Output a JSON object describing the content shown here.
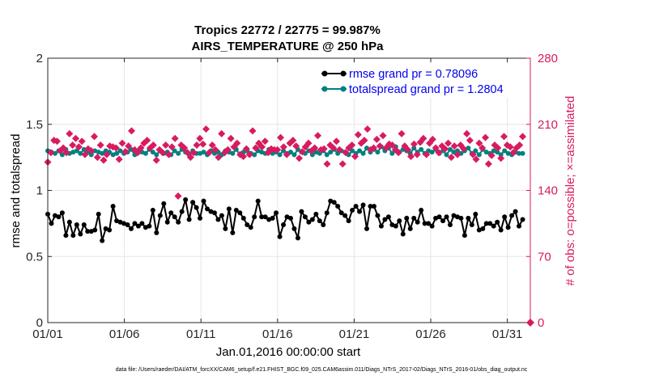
{
  "chart_data": {
    "type": "line",
    "title_line1": "Tropics 22772 / 22775 = 99.987%",
    "title_line2": "AIRS_TEMPERATURE @ 250 hPa",
    "xlabel": "Jan.01,2016 00:00:00 start",
    "ylabel_left": "rmse and totalspread",
    "ylabel_right": "# of obs: o=possible; ×=assimilated",
    "footer": "data file: /Users/raeder/DAI/ATM_forcXX/CAM6_setup/f.e21.FHIST_BGC.f09_025.CAM6assim.011/Diags_NTrS_2017-02/Diags_NTrS_2016-01/obs_diag_output.nc",
    "xlim": [
      0,
      31.5
    ],
    "ylim_left": [
      0,
      2
    ],
    "ylim_right": [
      0,
      280
    ],
    "x_ticks": [
      0,
      5,
      10,
      15,
      20,
      25,
      30
    ],
    "x_tick_labels": [
      "01/01",
      "01/06",
      "01/11",
      "01/16",
      "01/21",
      "01/26",
      "01/31"
    ],
    "y_ticks_left": [
      0,
      0.5,
      1,
      1.5,
      2
    ],
    "y_tick_labels_left": [
      "0",
      "0.5",
      "1",
      "1.5",
      "2"
    ],
    "y_ticks_right": [
      0,
      70,
      140,
      210,
      280
    ],
    "y_tick_labels_right": [
      "0",
      "70",
      "140",
      "210",
      "280"
    ],
    "grid": true,
    "legend_position": "top-right",
    "colors": {
      "rmse": "#000000",
      "spread": "#008080",
      "obs": "#d81b60",
      "axis": "#262626",
      "grid": "#e6e6e6"
    },
    "series": [
      {
        "name": "rmse grand pr = 0.78096",
        "axis": "left",
        "values": [
          0.82,
          0.75,
          0.81,
          0.8,
          0.83,
          0.66,
          0.76,
          0.66,
          0.74,
          0.67,
          0.74,
          0.69,
          0.69,
          0.7,
          0.82,
          0.62,
          0.71,
          0.7,
          0.88,
          0.77,
          0.76,
          0.75,
          0.74,
          0.71,
          0.75,
          0.73,
          0.75,
          0.72,
          0.73,
          0.85,
          0.68,
          0.81,
          0.9,
          0.76,
          0.83,
          0.8,
          0.76,
          0.84,
          0.93,
          0.78,
          0.91,
          0.87,
          0.79,
          0.92,
          0.86,
          0.84,
          0.83,
          0.78,
          0.81,
          0.71,
          0.86,
          0.68,
          0.85,
          0.83,
          0.79,
          0.74,
          0.72,
          0.8,
          0.92,
          0.8,
          0.8,
          0.78,
          0.79,
          0.83,
          0.65,
          0.74,
          0.8,
          0.79,
          0.71,
          0.64,
          0.84,
          0.8,
          0.76,
          0.78,
          0.82,
          0.77,
          0.74,
          0.83,
          0.92,
          0.91,
          0.88,
          0.83,
          0.81,
          0.77,
          0.85,
          0.88,
          0.84,
          0.89,
          0.71,
          0.88,
          0.88,
          0.81,
          0.73,
          0.78,
          0.8,
          0.74,
          0.73,
          0.77,
          0.67,
          0.79,
          0.71,
          0.79,
          0.76,
          0.85,
          0.75,
          0.75,
          0.73,
          0.79,
          0.8,
          0.77,
          0.8,
          0.74,
          0.81,
          0.8,
          0.79,
          0.66,
          0.79,
          0.74,
          0.82,
          0.7,
          0.71,
          0.75,
          0.75,
          0.73,
          0.76,
          0.7,
          0.8,
          0.72,
          0.81,
          0.84,
          0.73,
          0.78
        ]
      },
      {
        "name": "totalspread grand pr = 1.2804",
        "axis": "left",
        "values": [
          1.3,
          1.29,
          1.28,
          1.3,
          1.27,
          1.31,
          1.28,
          1.29,
          1.3,
          1.28,
          1.31,
          1.29,
          1.27,
          1.3,
          1.29,
          1.28,
          1.3,
          1.29,
          1.27,
          1.28,
          1.3,
          1.28,
          1.29,
          1.31,
          1.27,
          1.3,
          1.29,
          1.28,
          1.31,
          1.29,
          1.27,
          1.3,
          1.28,
          1.29,
          1.27,
          1.3,
          1.28,
          1.31,
          1.29,
          1.27,
          1.3,
          1.28,
          1.28,
          1.29,
          1.27,
          1.3,
          1.28,
          1.29,
          1.27,
          1.3,
          1.29,
          1.28,
          1.31,
          1.27,
          1.29,
          1.3,
          1.28,
          1.27,
          1.3,
          1.29,
          1.28,
          1.31,
          1.28,
          1.29,
          1.27,
          1.3,
          1.28,
          1.29,
          1.27,
          1.31,
          1.29,
          1.28,
          1.3,
          1.27,
          1.29,
          1.28,
          1.3,
          1.27,
          1.29,
          1.31,
          1.28,
          1.3,
          1.29,
          1.27,
          1.3,
          1.28,
          1.3,
          1.28,
          1.32,
          1.29,
          1.31,
          1.29,
          1.33,
          1.3,
          1.32,
          1.28,
          1.33,
          1.29,
          1.31,
          1.3,
          1.28,
          1.32,
          1.29,
          1.31,
          1.28,
          1.3,
          1.29,
          1.31,
          1.28,
          1.3,
          1.27,
          1.31,
          1.29,
          1.3,
          1.28,
          1.3,
          1.32,
          1.28,
          1.3,
          1.27,
          1.31,
          1.29,
          1.28,
          1.3,
          1.29,
          1.27,
          1.3,
          1.28,
          1.27,
          1.29,
          1.28,
          1.28
        ]
      }
    ],
    "obs_possible": {
      "name": "# of obs possible",
      "axis": "right",
      "values": [
        170,
        180,
        193,
        192,
        182,
        185,
        180,
        200,
        188,
        195,
        186,
        192,
        178,
        184,
        182,
        197,
        175,
        188,
        172,
        178,
        187,
        186,
        185,
        173,
        190,
        181,
        187,
        203,
        183,
        180,
        185,
        190,
        193,
        185,
        188,
        172,
        183,
        180,
        188,
        178,
        186,
        195,
        134,
        188,
        185,
        180,
        175,
        180,
        188,
        195,
        189,
        205,
        180,
        188,
        183,
        175,
        200,
        180,
        183,
        195,
        186,
        190,
        178,
        176,
        184,
        178,
        203,
        185,
        190,
        186,
        192,
        180,
        184,
        183,
        183,
        196,
        186,
        178,
        190,
        193,
        187,
        174,
        181,
        186,
        190,
        182,
        185,
        198,
        183,
        184,
        168,
        188,
        185,
        192,
        183,
        168,
        180,
        185,
        188,
        176,
        199,
        190,
        193,
        205,
        183,
        185,
        194,
        187,
        198,
        185,
        189,
        188,
        183,
        180,
        200,
        187,
        183,
        176,
        189,
        178,
        191,
        195,
        178,
        190,
        194,
        185,
        180,
        187,
        184,
        190,
        175,
        187,
        178,
        188,
        184,
        200,
        193,
        178,
        173,
        190,
        185,
        196,
        168,
        177,
        188,
        185,
        174,
        197,
        188,
        186,
        180,
        185,
        188,
        197
      ]
    },
    "obs_assimilated": {
      "name": "# of obs assimilated",
      "axis": "right",
      "values": [
        0
      ]
    },
    "ticks_top_right": true
  }
}
